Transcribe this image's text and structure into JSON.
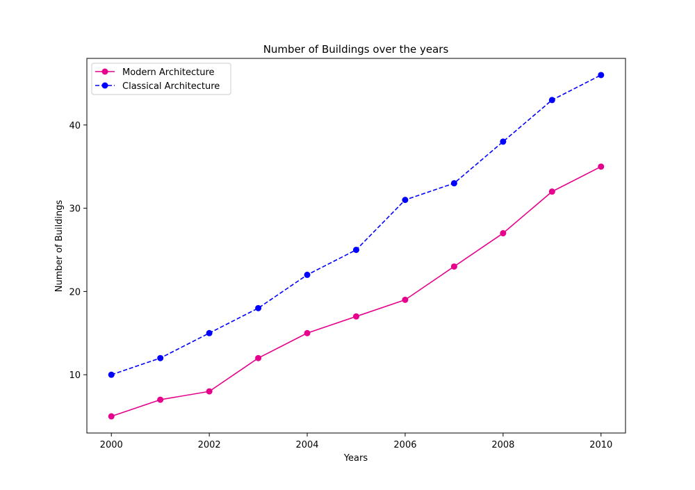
{
  "chart_data": {
    "type": "line",
    "title": "Number of Buildings over the years",
    "xlabel": "Years",
    "ylabel": "Number of Buildings",
    "x": [
      2000,
      2001,
      2002,
      2003,
      2004,
      2005,
      2006,
      2007,
      2008,
      2009,
      2010
    ],
    "xlim": [
      1999.5,
      2010.5
    ],
    "ylim": [
      3.0,
      48.0
    ],
    "xticks": [
      2000,
      2002,
      2004,
      2006,
      2008,
      2010
    ],
    "yticks": [
      10,
      20,
      30,
      40
    ],
    "grid": false,
    "legend_position": "top-left",
    "series": [
      {
        "name": "Modern Architecture",
        "values": [
          5,
          7,
          8,
          12,
          15,
          17,
          19,
          23,
          27,
          32,
          35
        ],
        "color": "#e6008c",
        "line_style": "solid",
        "marker": "circle"
      },
      {
        "name": "Classical Architecture",
        "values": [
          10,
          12,
          15,
          18,
          22,
          25,
          31,
          33,
          38,
          43,
          46
        ],
        "color": "#0000ff",
        "line_style": "dashed",
        "marker": "circle"
      }
    ]
  }
}
